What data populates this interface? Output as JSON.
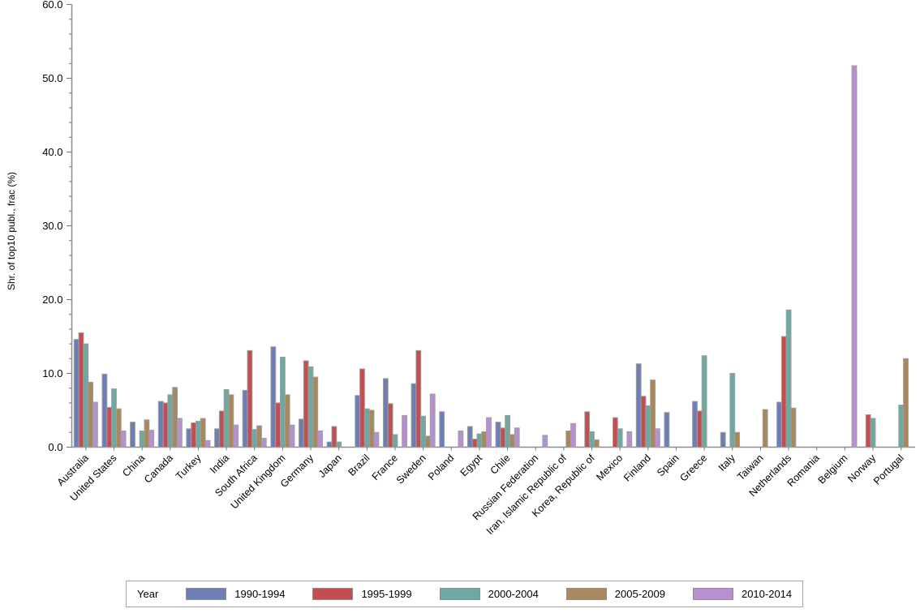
{
  "legend": {
    "title": "Year"
  },
  "chart_data": {
    "type": "bar",
    "title": "",
    "xlabel": "",
    "ylabel": "Shr. of top10 publ., frac (%)",
    "ylim": [
      0,
      60
    ],
    "y_major_tick_step": 10,
    "y_minor_tick_step": 2,
    "y_tick_labels": [
      "0.0",
      "10.0",
      "20.0",
      "30.0",
      "40.0",
      "50.0",
      "60.0"
    ],
    "grid": false,
    "legend_position": "bottom",
    "legend_title": "Year",
    "axis_color": "#8c8c8c",
    "tick_color": "#777777",
    "bar_border_color": "#9e9e9e",
    "categories": [
      "Australia",
      "United States",
      "China",
      "Canada",
      "Turkey",
      "India",
      "South Africa",
      "United Kingdom",
      "Germany",
      "Japan",
      "Brazil",
      "France",
      "Sweden",
      "Poland",
      "Egypt",
      "Chile",
      "Russian Federation",
      "Iran, Islamic Republic of",
      "Korea, Republic of",
      "Mexico",
      "Finland",
      "Spain",
      "Greece",
      "Italy",
      "Taiwan",
      "Netherlands",
      "Romania",
      "Belgium",
      "Norway",
      "Portugal"
    ],
    "series": [
      {
        "name": "1990-1994",
        "color": "#6d7eb4",
        "values": [
          14.6,
          9.9,
          3.4,
          6.2,
          2.5,
          2.5,
          7.7,
          13.6,
          3.8,
          0.7,
          7.0,
          9.3,
          8.6,
          4.8,
          2.8,
          3.4,
          0,
          0,
          0,
          0,
          11.3,
          4.7,
          6.2,
          2.0,
          0,
          6.1,
          0,
          0,
          0,
          0
        ]
      },
      {
        "name": "1995-1999",
        "color": "#c34e52",
        "values": [
          15.5,
          5.4,
          0,
          6.0,
          3.3,
          4.9,
          13.1,
          6.0,
          11.7,
          2.8,
          10.6,
          5.9,
          13.1,
          0,
          1.1,
          2.6,
          0,
          0,
          4.8,
          4.0,
          6.9,
          0,
          4.9,
          0,
          0,
          15.0,
          0,
          0,
          4.4,
          0
        ]
      },
      {
        "name": "2000-2004",
        "color": "#6fa7a1",
        "values": [
          14.0,
          7.9,
          2.2,
          7.1,
          3.5,
          7.8,
          2.4,
          12.2,
          10.9,
          0.7,
          5.2,
          1.7,
          4.2,
          0,
          1.8,
          4.3,
          0,
          0,
          2.1,
          2.5,
          5.6,
          0,
          12.4,
          10.0,
          0,
          18.6,
          0,
          0,
          3.9,
          5.7
        ]
      },
      {
        "name": "2005-2009",
        "color": "#a8885e",
        "values": [
          8.8,
          5.2,
          3.7,
          8.1,
          3.9,
          7.1,
          2.9,
          7.1,
          9.5,
          0,
          5.0,
          0,
          1.5,
          0,
          2.1,
          1.7,
          0,
          2.2,
          1.0,
          0,
          9.1,
          0,
          0,
          2.0,
          5.1,
          5.3,
          0,
          0,
          0,
          12.0
        ]
      },
      {
        "name": "2010-2014",
        "color": "#b690cf",
        "values": [
          6.1,
          2.2,
          2.3,
          3.9,
          0.9,
          3.0,
          1.2,
          3.0,
          2.2,
          0,
          2.0,
          4.3,
          7.2,
          2.2,
          4.0,
          2.6,
          1.6,
          3.2,
          0,
          2.1,
          2.5,
          0,
          0,
          0,
          0,
          0,
          0,
          51.7,
          0,
          0
        ]
      }
    ]
  }
}
